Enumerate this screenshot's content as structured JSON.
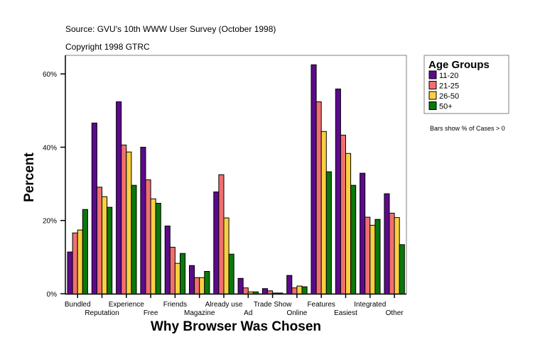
{
  "header": {
    "source": "Source: GVU's 10th WWW User Survey (October 1998)",
    "copyright": "Copyright 1998 GTRC"
  },
  "note": "Bars show % of Cases > 0",
  "chart_data": {
    "type": "bar",
    "xlabel": "Why Browser Was Chosen",
    "ylabel": "Percent",
    "ylim": [
      0,
      65
    ],
    "yticks": [
      "0%",
      "20%",
      "40%",
      "60%"
    ],
    "ytick_values": [
      0,
      20,
      40,
      60
    ],
    "grid": false,
    "legend": {
      "title": "Age Groups",
      "placement": "right"
    },
    "categories": [
      "Bundled",
      "Reputation",
      "Experience",
      "Free",
      "Friends",
      "Magazine",
      "Already use",
      "Ad",
      "Trade Show",
      "Online",
      "Features",
      "Easiest",
      "Integrated",
      "Other"
    ],
    "series": [
      {
        "name": "11-20",
        "color": "#5c0a8c",
        "values": [
          11.4,
          46.6,
          52.4,
          40.0,
          18.5,
          7.7,
          27.8,
          4.2,
          1.4,
          5.0,
          62.5,
          55.9,
          32.9,
          27.3
        ]
      },
      {
        "name": "21-25",
        "color": "#f07070",
        "values": [
          16.6,
          29.1,
          40.6,
          31.1,
          12.7,
          4.4,
          32.5,
          1.6,
          0.8,
          1.6,
          52.4,
          43.3,
          20.9,
          22.0
        ]
      },
      {
        "name": "26-50",
        "color": "#f8d040",
        "values": [
          17.4,
          26.5,
          38.7,
          25.9,
          8.3,
          4.4,
          20.7,
          0.5,
          0.2,
          2.1,
          44.3,
          38.3,
          18.7,
          20.8
        ]
      },
      {
        "name": "50+",
        "color": "#0a780a",
        "values": [
          23.0,
          23.6,
          29.6,
          24.7,
          11.0,
          6.1,
          10.8,
          0.5,
          0.2,
          1.9,
          33.3,
          29.6,
          20.3,
          13.4
        ]
      }
    ]
  }
}
